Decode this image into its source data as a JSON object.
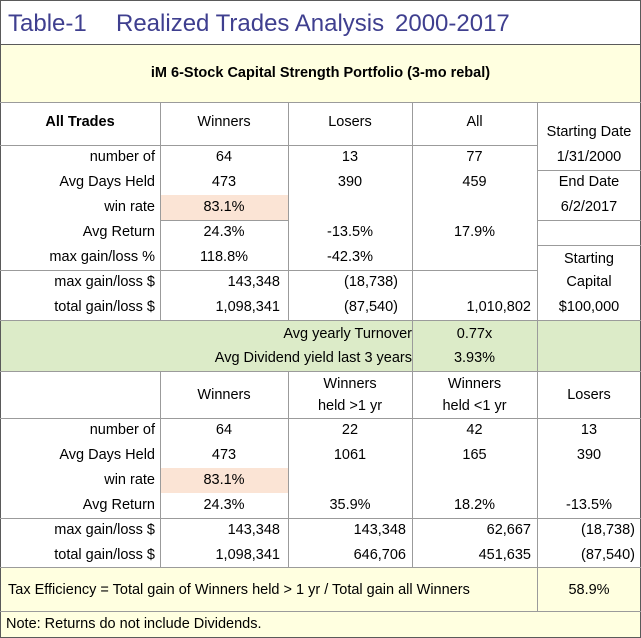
{
  "title": {
    "label": "Table-1",
    "text": "Realized Trades Analysis",
    "period": "2000-2017"
  },
  "portfolio_title": "iM 6-Stock Capital Strength Portfolio (3-mo rebal)",
  "top_section": {
    "header": {
      "label": "All Trades",
      "winners": "Winners",
      "losers": "Losers",
      "all": "All"
    },
    "rows": [
      {
        "label": "number of",
        "winners": "64",
        "losers": "13",
        "all": "77"
      },
      {
        "label": "Avg Days Held",
        "winners": "473",
        "losers": "390",
        "all": "459"
      },
      {
        "label": "win rate",
        "winners": "83.1%",
        "losers": "",
        "all": ""
      },
      {
        "label": "Avg Return",
        "winners": "24.3%",
        "losers": "-13.5%",
        "all": "17.9%"
      },
      {
        "label": "max gain/loss %",
        "winners": "118.8%",
        "losers": "-42.3%",
        "all": ""
      },
      {
        "label": "max gain/loss $",
        "winners": "143,348",
        "losers": "(18,738)",
        "all": ""
      },
      {
        "label": "total gain/loss $",
        "winners": "1,098,341",
        "losers": "(87,540)",
        "all": "1,010,802"
      }
    ]
  },
  "side_panel": {
    "starting_date_label": "Starting Date",
    "starting_date": "1/31/2000",
    "end_date_label": "End Date",
    "end_date": "6/2/2017",
    "starting_capital_label_1": "Starting",
    "starting_capital_label_2": "Capital",
    "starting_capital": "$100,000"
  },
  "green_band": [
    {
      "label": "Avg yearly Turnover",
      "value": "0.77x"
    },
    {
      "label": "Avg Dividend yield last 3 years",
      "value": "3.93%"
    }
  ],
  "bottom_section": {
    "header": {
      "winners": "Winners",
      "winners_gt1_l1": "Winners",
      "winners_gt1_l2": "held >1 yr",
      "winners_lt1_l1": "Winners",
      "winners_lt1_l2": "held <1 yr",
      "losers": "Losers"
    },
    "rows": [
      {
        "label": "number of",
        "winners": "64",
        "gt1": "22",
        "lt1": "42",
        "losers": "13"
      },
      {
        "label": "Avg Days Held",
        "winners": "473",
        "gt1": "1061",
        "lt1": "165",
        "losers": "390"
      },
      {
        "label": "win rate",
        "winners": "83.1%",
        "gt1": "",
        "lt1": "",
        "losers": ""
      },
      {
        "label": "Avg Return",
        "winners": "24.3%",
        "gt1": "35.9%",
        "lt1": "18.2%",
        "losers": "-13.5%"
      },
      {
        "label": "max gain/loss $",
        "winners": "143,348",
        "gt1": "143,348",
        "lt1": "62,667",
        "losers": "(18,738)"
      },
      {
        "label": "total gain/loss $",
        "winners": "1,098,341",
        "gt1": "646,706",
        "lt1": "451,635",
        "losers": "(87,540)"
      }
    ]
  },
  "tax_efficiency": {
    "text": "Tax Efficiency = Total gain of Winners held > 1 yr / Total gain all Winners",
    "value": "58.9%"
  },
  "note": "Note: Returns do not include Dividends."
}
